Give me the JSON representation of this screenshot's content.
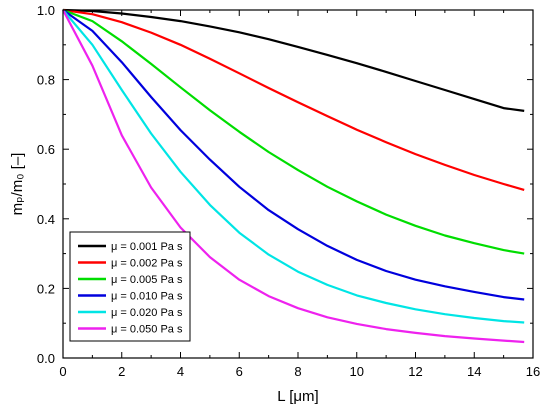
{
  "chart_data": {
    "type": "line",
    "xlabel": "L  [μm]",
    "ylabel": "mₚ/m₀ [–]",
    "xlim": [
      0,
      16
    ],
    "ylim": [
      0.0,
      1.0
    ],
    "x_ticks": [
      "0",
      "2",
      "4",
      "6",
      "8",
      "10",
      "12",
      "14",
      "16"
    ],
    "y_ticks": [
      "0.0",
      "0.2",
      "0.4",
      "0.6",
      "0.8",
      "1.0"
    ],
    "grid": false,
    "legend_position": "lower-left",
    "series": [
      {
        "name": "μ = 0.001 Pa s",
        "color": "#000000",
        "x": [
          0,
          1,
          2,
          3,
          4,
          5,
          6,
          7,
          8,
          9,
          10,
          11,
          12,
          13,
          14,
          15,
          15.7
        ],
        "y": [
          1.0,
          0.997,
          0.99,
          0.98,
          0.968,
          0.953,
          0.936,
          0.916,
          0.894,
          0.871,
          0.847,
          0.822,
          0.796,
          0.77,
          0.744,
          0.718,
          0.71
        ]
      },
      {
        "name": "μ = 0.002 Pa s",
        "color": "#ff0000",
        "x": [
          0,
          1,
          2,
          3,
          4,
          5,
          6,
          7,
          8,
          9,
          10,
          11,
          12,
          13,
          14,
          15,
          15.7
        ],
        "y": [
          1.0,
          0.988,
          0.965,
          0.935,
          0.9,
          0.86,
          0.818,
          0.776,
          0.735,
          0.695,
          0.656,
          0.62,
          0.586,
          0.555,
          0.526,
          0.5,
          0.483
        ]
      },
      {
        "name": "μ = 0.005 Pa s",
        "color": "#00dd00",
        "x": [
          0,
          1,
          2,
          3,
          4,
          5,
          6,
          7,
          8,
          9,
          10,
          11,
          12,
          13,
          14,
          15,
          15.7
        ],
        "y": [
          1.0,
          0.968,
          0.91,
          0.845,
          0.778,
          0.712,
          0.65,
          0.592,
          0.54,
          0.492,
          0.45,
          0.412,
          0.38,
          0.352,
          0.33,
          0.31,
          0.3
        ]
      },
      {
        "name": "μ = 0.010 Pa s",
        "color": "#0000dd",
        "x": [
          0,
          1,
          2,
          3,
          4,
          5,
          6,
          7,
          8,
          9,
          10,
          11,
          12,
          13,
          14,
          15,
          15.7
        ],
        "y": [
          1.0,
          0.94,
          0.85,
          0.75,
          0.655,
          0.57,
          0.492,
          0.425,
          0.37,
          0.322,
          0.282,
          0.25,
          0.225,
          0.206,
          0.19,
          0.175,
          0.168
        ]
      },
      {
        "name": "μ = 0.020 Pa s",
        "color": "#00e5e5",
        "x": [
          0,
          1,
          2,
          3,
          4,
          5,
          6,
          7,
          8,
          9,
          10,
          11,
          12,
          13,
          14,
          15,
          15.7
        ],
        "y": [
          1.0,
          0.9,
          0.77,
          0.645,
          0.535,
          0.44,
          0.36,
          0.297,
          0.248,
          0.21,
          0.18,
          0.158,
          0.14,
          0.126,
          0.115,
          0.106,
          0.102
        ]
      },
      {
        "name": "μ = 0.050 Pa s",
        "color": "#ee22ee",
        "x": [
          0,
          1,
          2,
          3,
          4,
          5,
          6,
          7,
          8,
          9,
          10,
          11,
          12,
          13,
          14,
          15,
          15.7
        ],
        "y": [
          1.0,
          0.84,
          0.64,
          0.49,
          0.375,
          0.29,
          0.225,
          0.178,
          0.143,
          0.117,
          0.098,
          0.083,
          0.072,
          0.063,
          0.056,
          0.05,
          0.046
        ]
      }
    ]
  }
}
